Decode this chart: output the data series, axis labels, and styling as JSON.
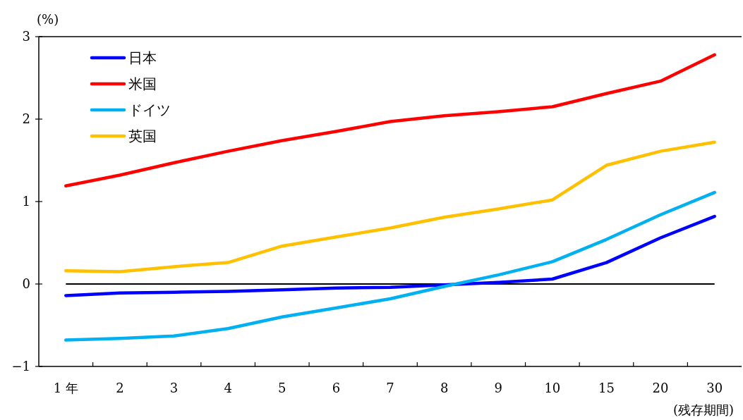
{
  "chart_data": {
    "type": "line",
    "ylabel": "(%)",
    "xlabel": "(残存期間)",
    "categories": [
      "1 年",
      "2",
      "3",
      "4",
      "5",
      "6",
      "7",
      "8",
      "9",
      "10",
      "15",
      "20",
      "30"
    ],
    "ylim": [
      -1,
      3
    ],
    "yticks": [
      -1,
      0,
      1,
      2,
      3
    ],
    "grid": false,
    "legend": "top left",
    "marker": "none",
    "line_style": "solid",
    "ref_lines": [
      {
        "axis": "y",
        "value": 0,
        "color": "#000000"
      }
    ],
    "series": [
      {
        "name": "日本",
        "color": "#0000ff",
        "values": [
          -0.14,
          -0.11,
          -0.1,
          -0.09,
          -0.07,
          -0.05,
          -0.04,
          -0.01,
          0.02,
          0.06,
          0.26,
          0.56,
          0.82
        ]
      },
      {
        "name": "米国",
        "color": "#ff0000",
        "values": [
          1.19,
          1.32,
          1.47,
          1.61,
          1.74,
          1.85,
          1.97,
          2.04,
          2.09,
          2.15,
          2.31,
          2.46,
          2.78
        ]
      },
      {
        "name": "ドイツ",
        "color": "#00b0f0",
        "values": [
          -0.68,
          -0.66,
          -0.63,
          -0.54,
          -0.4,
          -0.29,
          -0.18,
          -0.03,
          0.11,
          0.27,
          0.54,
          0.84,
          1.11
        ]
      },
      {
        "name": "英国",
        "color": "#ffc000",
        "values": [
          0.16,
          0.15,
          0.21,
          0.26,
          0.46,
          0.57,
          0.68,
          0.81,
          0.91,
          1.02,
          1.44,
          1.61,
          1.72
        ]
      }
    ]
  }
}
